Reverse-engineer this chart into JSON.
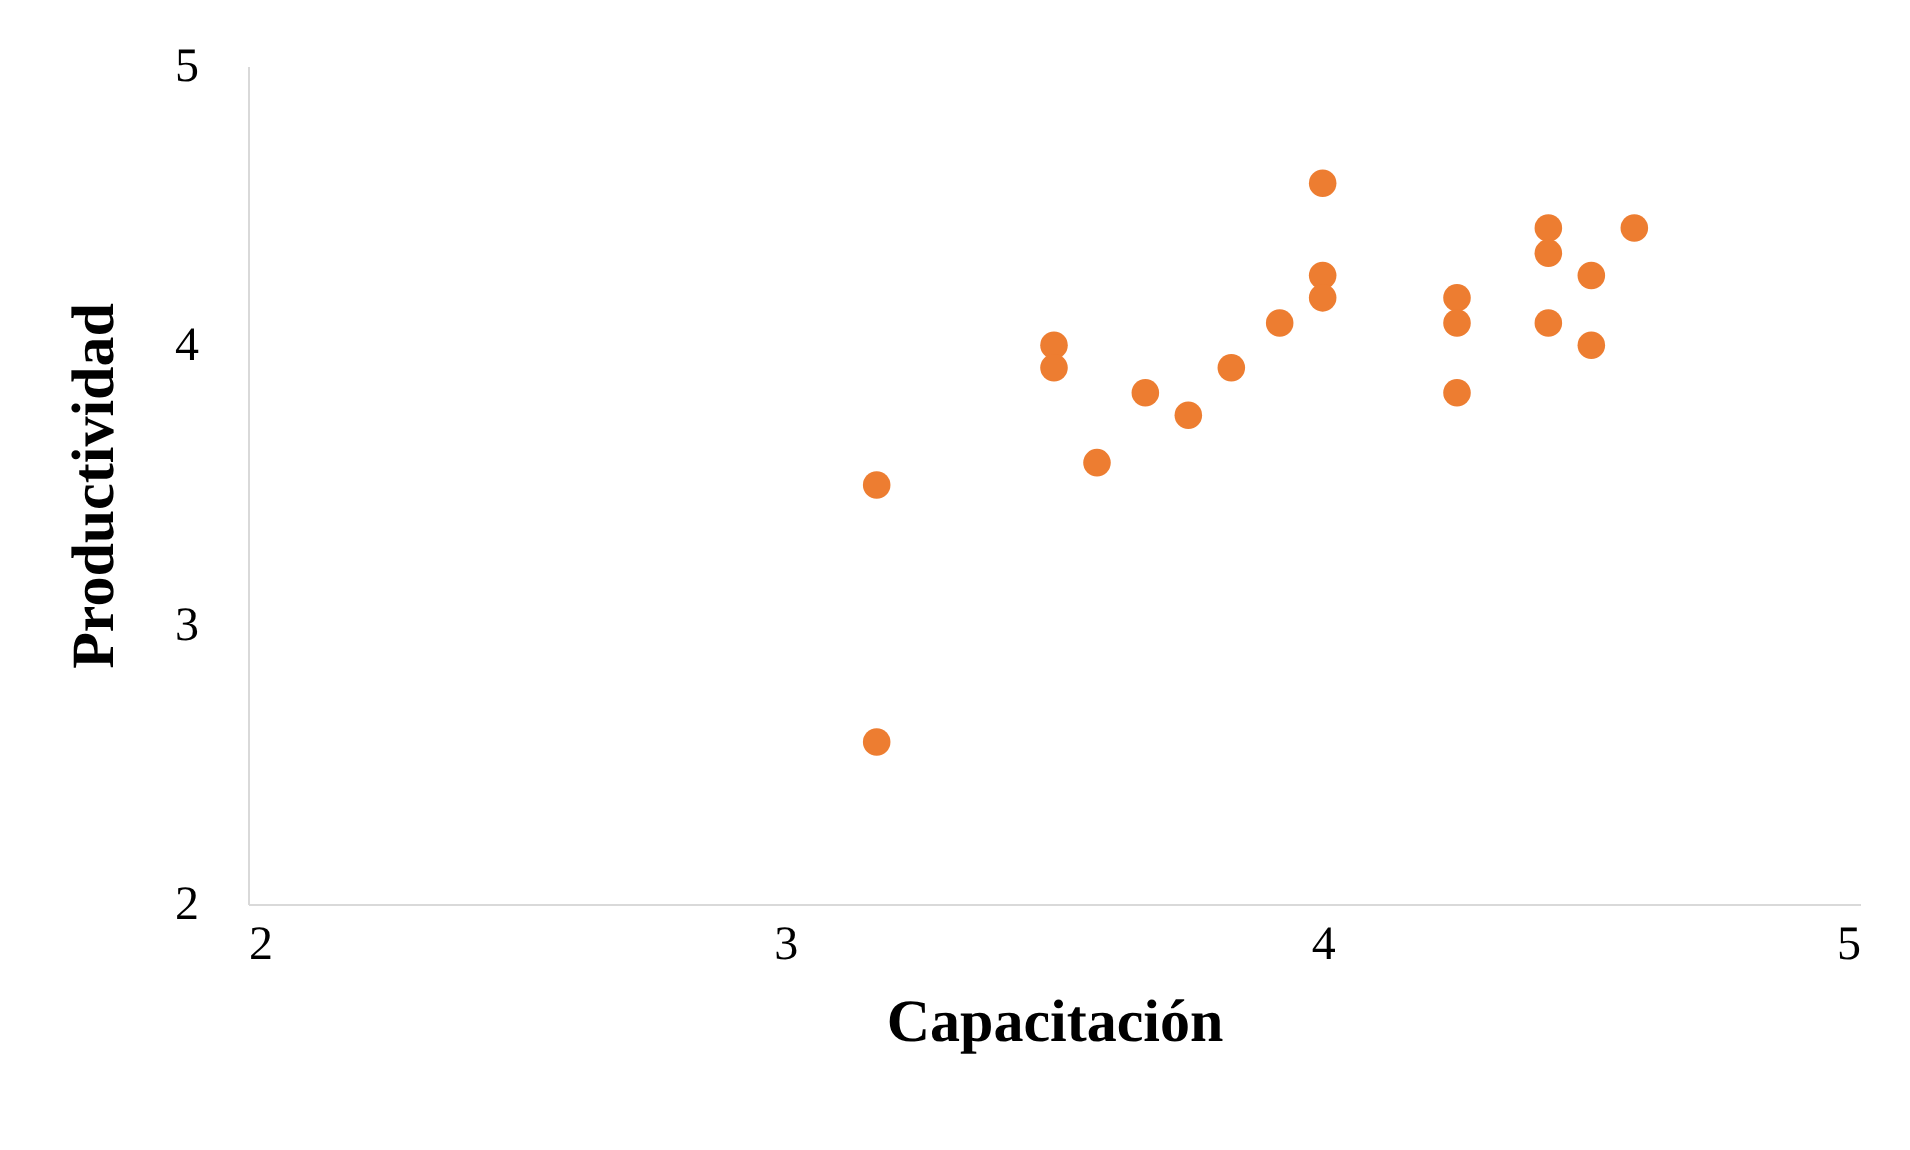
{
  "chart_data": {
    "type": "scatter",
    "xlabel": "Capacitación",
    "ylabel": "Productividad",
    "xlim": [
      2,
      5
    ],
    "ylim": [
      2,
      5
    ],
    "xticks": [
      2,
      3,
      4,
      5
    ],
    "yticks": [
      2,
      3,
      4,
      5
    ],
    "grid": false,
    "marker": "circle",
    "series": [
      {
        "color": "#ed7d31",
        "x": [
          3.17,
          3.17,
          3.5,
          3.5,
          3.58,
          3.67,
          3.75,
          3.83,
          3.92,
          4.0,
          4.0,
          4.0,
          4.25,
          4.25,
          4.25,
          4.42,
          4.42,
          4.42,
          4.5,
          4.5,
          4.58
        ],
        "values": [
          3.5,
          2.58,
          4.0,
          3.92,
          3.58,
          3.83,
          3.75,
          3.92,
          4.08,
          4.58,
          4.25,
          4.17,
          4.17,
          4.08,
          3.83,
          4.42,
          4.33,
          4.08,
          4.25,
          4.0,
          4.42
        ]
      }
    ]
  }
}
